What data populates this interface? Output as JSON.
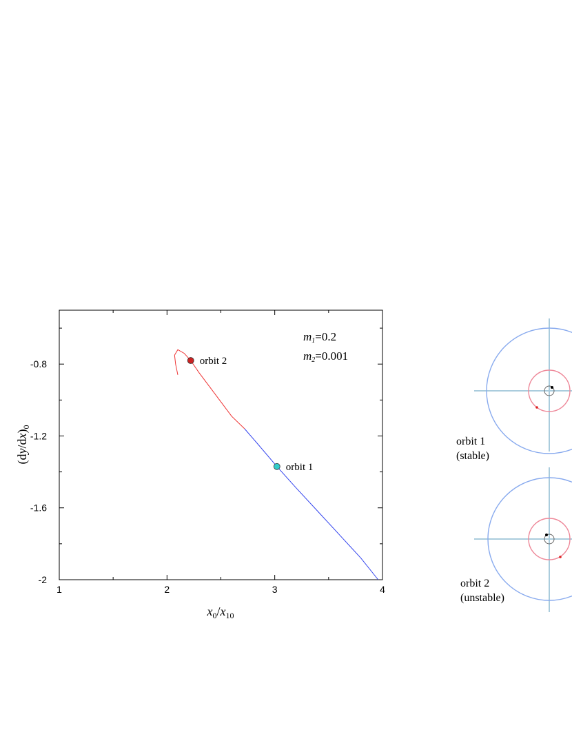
{
  "chart_data": {
    "type": "line",
    "xlabel": "x0/x10",
    "ylabel": "(dy/dx)0",
    "xlim": [
      1,
      4
    ],
    "ylim": [
      -2.0,
      -0.5
    ],
    "x_ticks": [
      "1",
      "2",
      "3",
      "4"
    ],
    "y_ticks": [
      "-0.8",
      "-1.2",
      "-1.6",
      "-2"
    ],
    "grid": false,
    "parameters": {
      "m1": "m1=0.2",
      "m2": "m2=0.001"
    },
    "series": [
      {
        "color": "#ee3333",
        "points": [
          [
            2.1,
            -0.86
          ],
          [
            2.08,
            -0.8
          ],
          [
            2.07,
            -0.75
          ],
          [
            2.1,
            -0.72
          ],
          [
            2.16,
            -0.74
          ],
          [
            2.22,
            -0.78
          ],
          [
            2.3,
            -0.85
          ],
          [
            2.4,
            -0.93
          ],
          [
            2.5,
            -1.01
          ],
          [
            2.6,
            -1.09
          ],
          [
            2.72,
            -1.16
          ]
        ]
      },
      {
        "color": "#3344ee",
        "points": [
          [
            2.72,
            -1.16
          ],
          [
            2.85,
            -1.25
          ],
          [
            3.02,
            -1.37
          ],
          [
            3.2,
            -1.49
          ],
          [
            3.4,
            -1.62
          ],
          [
            3.6,
            -1.75
          ],
          [
            3.8,
            -1.88
          ],
          [
            3.96,
            -2.0
          ]
        ]
      }
    ],
    "points": [
      {
        "label": "orbit 2",
        "x": 2.22,
        "y": -0.78,
        "color": "#cc2222"
      },
      {
        "label": "orbit 1",
        "x": 3.02,
        "y": -1.37,
        "color": "#33cccc"
      }
    ]
  },
  "insets": [
    {
      "label_line1": "orbit 1",
      "label_line2": "(stable)",
      "ring_colors": {
        "outer": "#88aaee",
        "inner": "#ee8899",
        "axis": "#aaccdd"
      }
    },
    {
      "label_line1": "orbit 2",
      "label_line2": "(unstable)",
      "ring_colors": {
        "outer": "#88aaee",
        "inner": "#ee8899",
        "axis": "#aaccdd"
      }
    }
  ]
}
